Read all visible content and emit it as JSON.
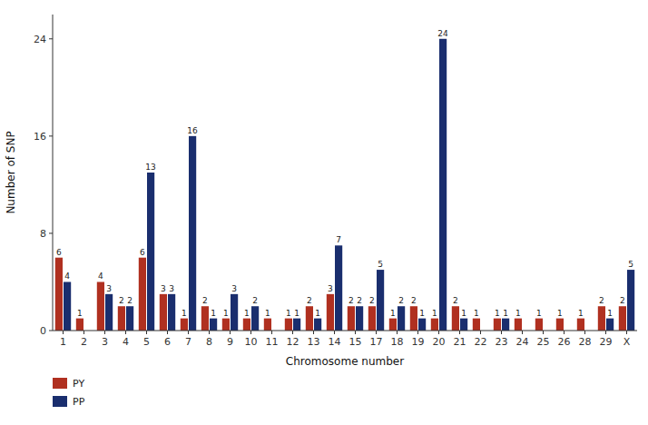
{
  "chart_data": {
    "type": "bar",
    "xlabel": "Chromosome number",
    "ylabel": "Number of SNP",
    "categories": [
      "1",
      "2",
      "3",
      "4",
      "5",
      "6",
      "7",
      "8",
      "9",
      "10",
      "11",
      "12",
      "13",
      "14",
      "15",
      "17",
      "18",
      "19",
      "20",
      "21",
      "22",
      "23",
      "24",
      "25",
      "26",
      "28",
      "29",
      "X"
    ],
    "series": [
      {
        "name": "PY",
        "color": "#b03020",
        "values": [
          6,
          1,
          4,
          2,
          6,
          3,
          1,
          2,
          1,
          1,
          1,
          1,
          2,
          3,
          2,
          2,
          1,
          2,
          1,
          2,
          1,
          1,
          1,
          1,
          1,
          1,
          2,
          2
        ]
      },
      {
        "name": "PP",
        "color": "#1a2e6e",
        "values": [
          4,
          0,
          3,
          2,
          13,
          3,
          16,
          1,
          3,
          2,
          0,
          1,
          1,
          7,
          2,
          5,
          2,
          1,
          24,
          1,
          0,
          1,
          0,
          0,
          0,
          0,
          1,
          5
        ]
      }
    ],
    "ylim": [
      0,
      26
    ],
    "yticks": [
      0,
      8,
      16,
      24
    ],
    "data_labels": true,
    "grid": false,
    "legend": "bottom"
  }
}
